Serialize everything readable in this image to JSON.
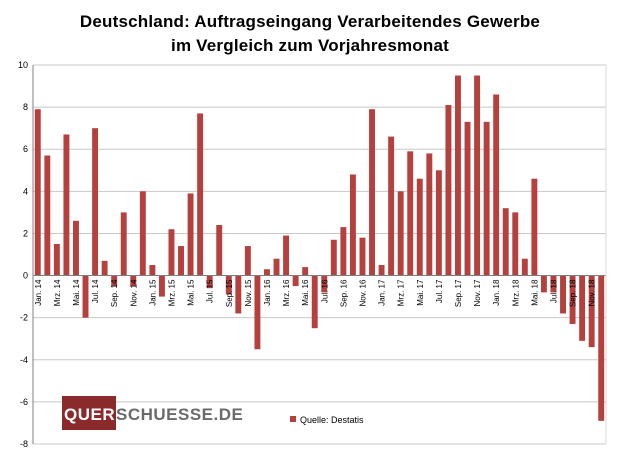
{
  "chart_data": {
    "type": "bar",
    "title_line1": "Deutschland: Auftragseingang Verarbeitendes Gewerbe",
    "title_line2": "im Vergleich zum Vorjahresmonat",
    "xlabel": "",
    "ylabel": "",
    "ylim": [
      -8,
      10
    ],
    "yticks": [
      -8,
      -6,
      -4,
      -2,
      0,
      2,
      4,
      6,
      8,
      10
    ],
    "grid": true,
    "legend": "bottom-center",
    "bar_color": "#b5413f",
    "series": [
      {
        "name": "Quelle: Destatis",
        "values": [
          7.9,
          5.7,
          1.5,
          6.7,
          2.6,
          -2.0,
          7.0,
          0.7,
          -0.5,
          3.0,
          -0.5,
          4.0,
          0.5,
          -1.0,
          2.2,
          1.4,
          3.9,
          7.7,
          -0.6,
          2.4,
          -0.9,
          -1.8,
          1.4,
          -3.5,
          0.3,
          0.8,
          1.9,
          -0.5,
          0.4,
          -2.5,
          -0.8,
          1.7,
          2.3,
          4.8,
          1.8,
          7.9,
          0.5,
          6.6,
          4.0,
          5.9,
          4.6,
          5.8,
          5.0,
          8.1,
          9.5,
          7.3,
          9.5,
          7.3,
          8.6,
          3.2,
          3.0,
          0.8,
          4.6,
          -0.8,
          -0.8,
          -1.8,
          -2.3,
          -3.1,
          -3.4,
          -6.9
        ]
      }
    ],
    "categories": [
      "Jan. 14",
      "Feb. 14",
      "Mrz. 14",
      "Apr. 14",
      "Mai. 14",
      "Jun. 14",
      "Jul. 14",
      "Aug. 14",
      "Sep. 14",
      "Okt. 14",
      "Nov. 14",
      "Dez. 14",
      "Jan. 15",
      "Feb. 15",
      "Mrz. 15",
      "Apr. 15",
      "Mai. 15",
      "Jun. 15",
      "Jul. 15",
      "Aug. 15",
      "Sep. 15",
      "Okt. 15",
      "Nov. 15",
      "Dez. 15",
      "Jan. 16",
      "Feb. 16",
      "Mrz. 16",
      "Apr. 16",
      "Mai. 16",
      "Jun. 16",
      "Jul. 16",
      "Aug. 16",
      "Sep. 16",
      "Okt. 16",
      "Nov. 16",
      "Dez. 16",
      "Jan. 17",
      "Feb. 17",
      "Mrz. 17",
      "Apr. 17",
      "Mai. 17",
      "Jun. 17",
      "Jul. 17",
      "Aug. 17",
      "Sep. 17",
      "Okt. 17",
      "Nov. 17",
      "Dez. 17",
      "Jan. 18",
      "Feb. 18",
      "Mrz. 18",
      "Apr. 18",
      "Mai. 18",
      "Jun. 18",
      "Jul. 18",
      "Aug. 18",
      "Sep. 18",
      "Okt. 18",
      "Nov. 18",
      "Dez. 18"
    ],
    "x_tick_labels": [
      "Jan. 14",
      "Mrz. 14",
      "Mai. 14",
      "Jul. 14",
      "Sep. 14",
      "Nov. 14",
      "Jan. 15",
      "Mrz. 15",
      "Mai. 15",
      "Jul. 15",
      "Sep. 15",
      "Nov. 15",
      "Jan. 16",
      "Mrz. 16",
      "Mai. 16",
      "Jul. 16",
      "Sep. 16",
      "Nov. 16",
      "Jan. 17",
      "Mrz. 17",
      "Mai. 17",
      "Jul. 17",
      "Sep. 17",
      "Nov. 17",
      "Jan. 18",
      "Mrz. 18",
      "Mai. 18",
      "Jul. 18",
      "Sep. 18",
      "Nov. 18"
    ]
  },
  "watermark": {
    "text_dark": "QUER",
    "text_light": "SCHUESSE.DE"
  },
  "colors": {
    "bar": "#b5413f",
    "grid": "#c8c8c8",
    "axis": "#808080"
  }
}
